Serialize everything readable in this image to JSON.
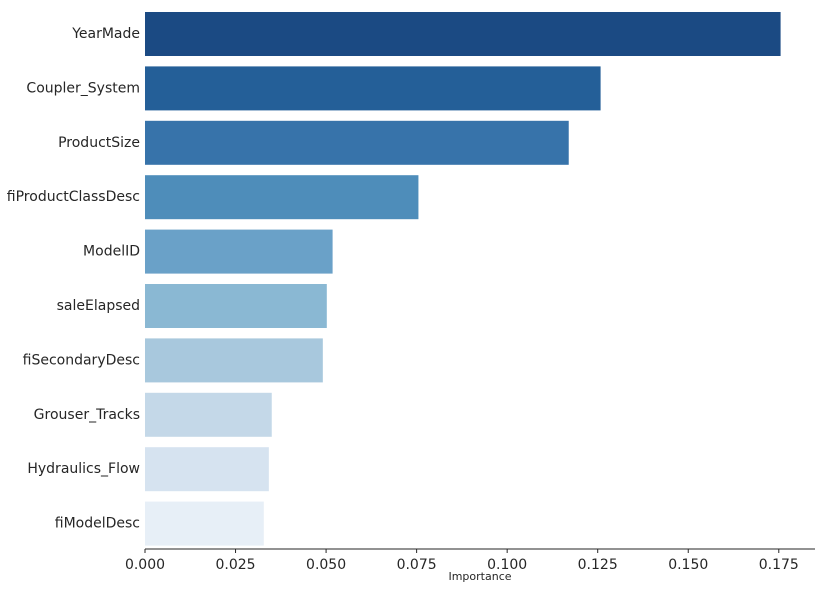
{
  "chart_data": {
    "type": "bar",
    "orientation": "horizontal",
    "title": "",
    "xlabel": "Importance",
    "ylabel": "",
    "xlim": [
      0,
      0.185
    ],
    "grid": false,
    "legend": "none",
    "categories": [
      "YearMade",
      "Coupler_System",
      "ProductSize",
      "fiProductClassDesc",
      "ModelID",
      "saleElapsed",
      "fiSecondaryDesc",
      "Grouser_Tracks",
      "Hydraulics_Flow",
      "fiModelDesc"
    ],
    "values": [
      0.1755,
      0.1258,
      0.117,
      0.0755,
      0.0518,
      0.0502,
      0.0491,
      0.035,
      0.0342,
      0.0328
    ],
    "colors": [
      "#1b4a83",
      "#245f98",
      "#3773aa",
      "#4e8dba",
      "#6aa1c8",
      "#8ab8d3",
      "#a8c8dd",
      "#c4d8e8",
      "#d6e3f0",
      "#e7eff7"
    ],
    "xticks": [
      0,
      0.025,
      0.05,
      0.075,
      0.1,
      0.125,
      0.15,
      0.175
    ],
    "xtick_labels": [
      "0.000",
      "0.025",
      "0.050",
      "0.075",
      "0.100",
      "0.125",
      "0.150",
      "0.175"
    ]
  }
}
